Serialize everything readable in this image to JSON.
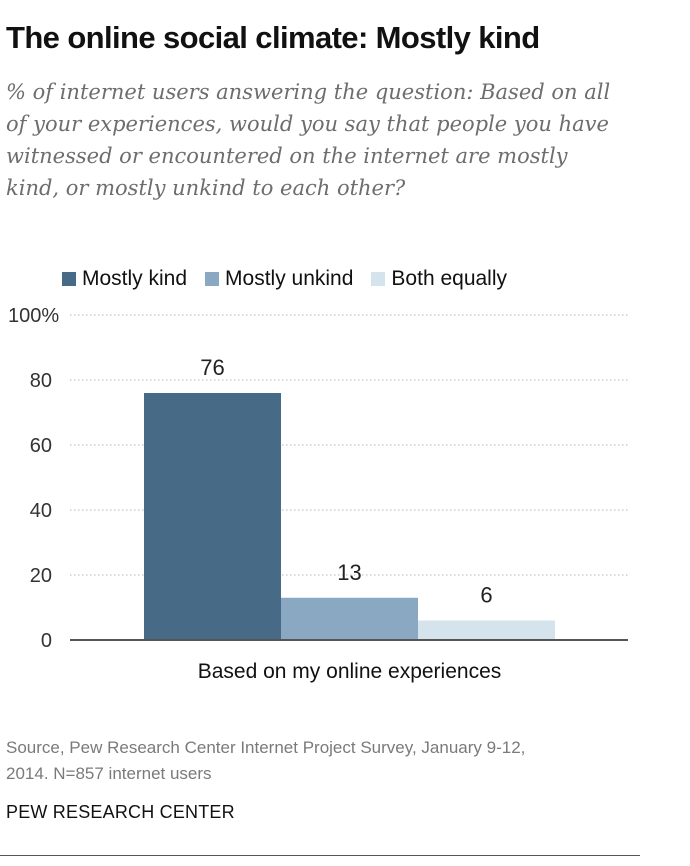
{
  "title": "The online social climate: Mostly kind",
  "subtitle_lines": [
    "% of internet users answering the question: Based on all",
    "of your experiences, would you say that people you have",
    "witnessed or encountered on the internet are mostly",
    "kind, or mostly unkind to each other?"
  ],
  "source_lines": [
    "Source, Pew Research Center Internet Project Survey, January 9-12,",
    "2014. N=857 internet users"
  ],
  "brand": "PEW RESEARCH CENTER",
  "chart_data": {
    "type": "bar",
    "categories": [
      "Based on my online experiences"
    ],
    "series": [
      {
        "name": "Mostly kind",
        "values": [
          76
        ],
        "color": "#476a86"
      },
      {
        "name": "Mostly unkind",
        "values": [
          13
        ],
        "color": "#8aa8c2"
      },
      {
        "name": "Both equally",
        "values": [
          6
        ],
        "color": "#d5e3ec"
      }
    ],
    "ylim": [
      0,
      100
    ],
    "yticks": [
      0,
      20,
      40,
      60,
      80,
      100
    ],
    "ytick_labels": [
      "0",
      "20",
      "40",
      "60",
      "80",
      "100%"
    ],
    "grid": true,
    "legend": "top"
  }
}
